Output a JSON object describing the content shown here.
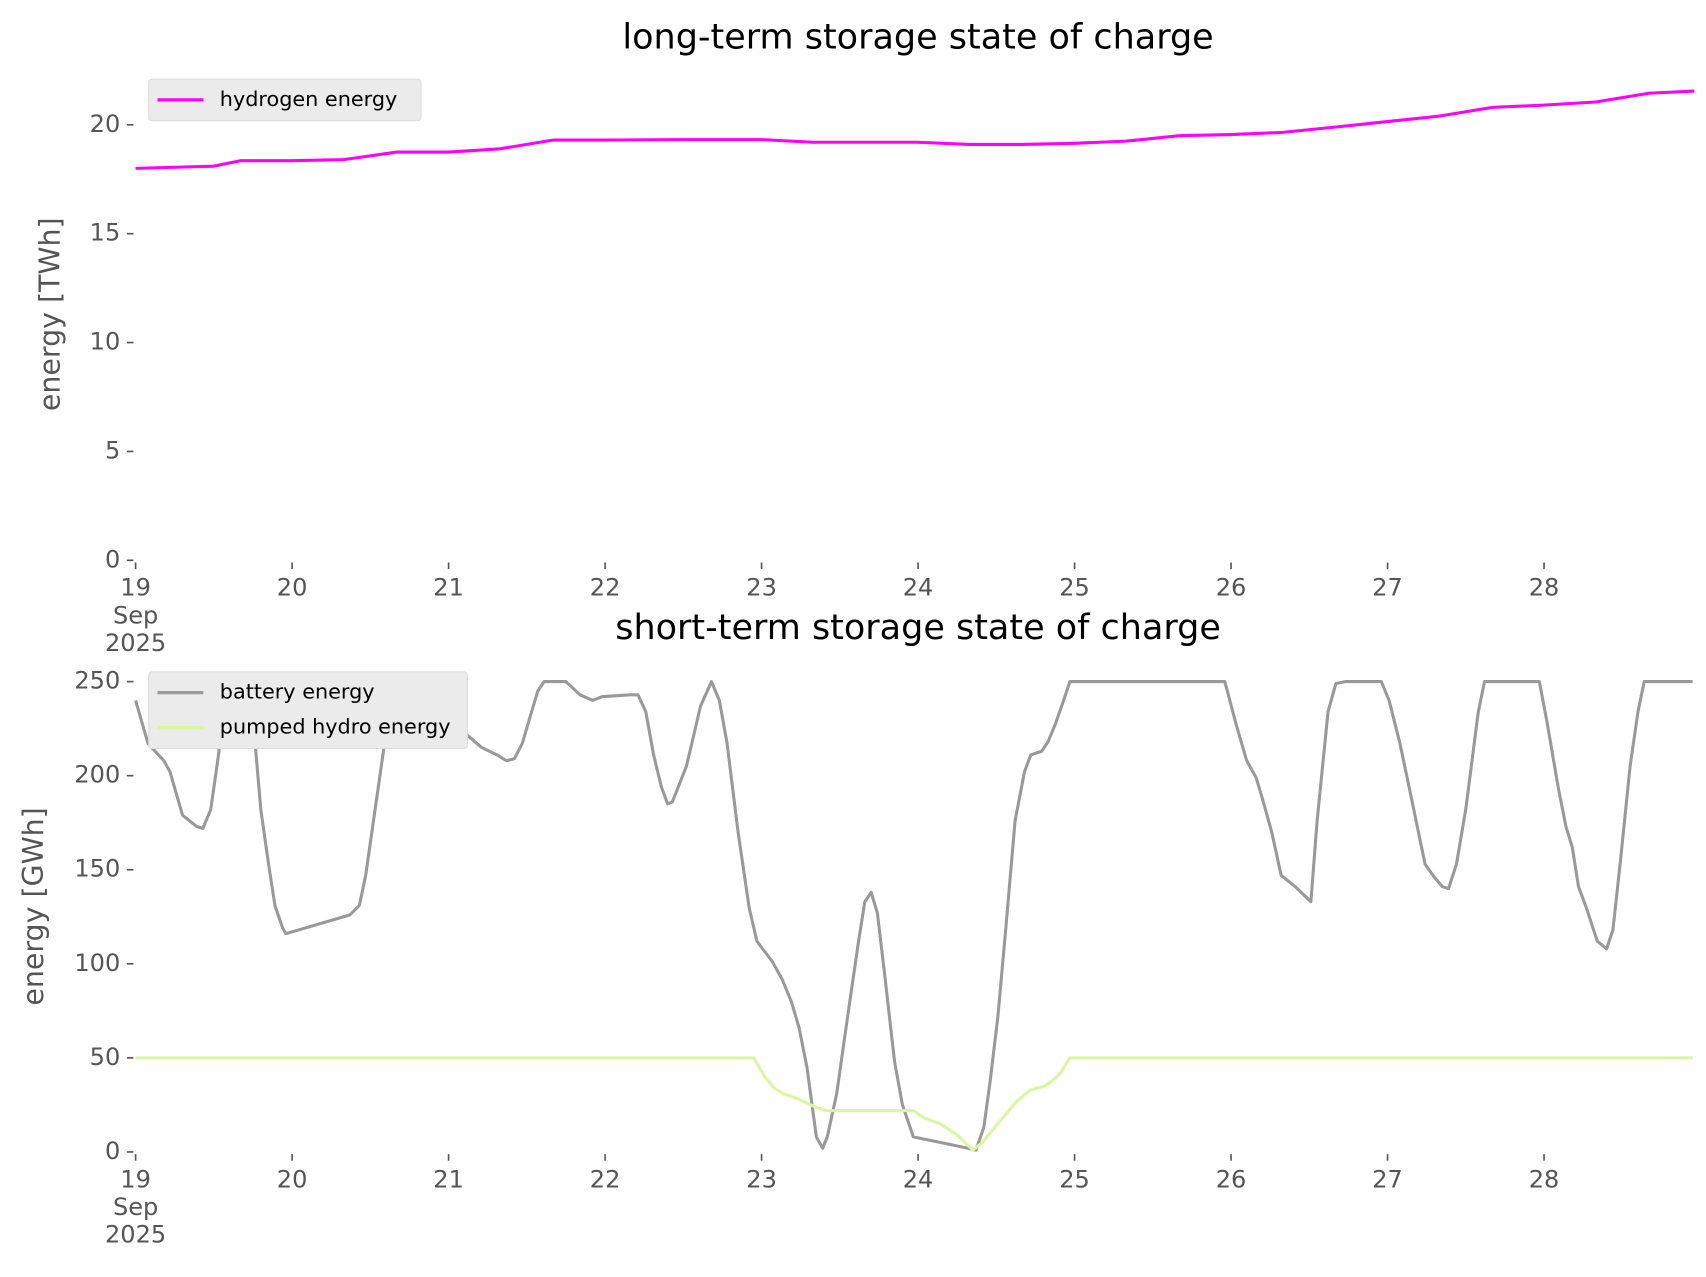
{
  "chart_data": [
    {
      "type": "line",
      "title": "long-term storage state of charge",
      "ylabel": "energy [TWh]",
      "xlim": [
        19,
        29
      ],
      "xticks": [
        {
          "value": 19,
          "label": "19\nSep\n2025"
        },
        20,
        21,
        22,
        23,
        24,
        25,
        26,
        27,
        28
      ],
      "ylim": [
        0,
        22.6
      ],
      "yticks": [
        0,
        5,
        10,
        15,
        20
      ],
      "legend": "upper left",
      "series": [
        {
          "name": "hydrogen energy",
          "color": "#ff00ff",
          "x": [
            19.0,
            19.25,
            19.5,
            19.67,
            20.0,
            20.33,
            20.67,
            21.0,
            21.33,
            21.67,
            22.0,
            22.5,
            23.0,
            23.33,
            23.67,
            24.0,
            24.33,
            24.67,
            25.0,
            25.33,
            25.67,
            26.0,
            26.33,
            26.67,
            27.0,
            27.33,
            27.67,
            28.0,
            28.33,
            28.67,
            28.96
          ],
          "values": [
            18.0,
            18.05,
            18.1,
            18.35,
            18.35,
            18.4,
            18.75,
            18.75,
            18.9,
            19.3,
            19.3,
            19.32,
            19.32,
            19.2,
            19.2,
            19.2,
            19.1,
            19.1,
            19.15,
            19.25,
            19.5,
            19.55,
            19.65,
            19.9,
            20.15,
            20.4,
            20.8,
            20.9,
            21.05,
            21.45,
            21.55
          ]
        }
      ]
    },
    {
      "type": "line",
      "title": "short-term storage state of charge",
      "ylabel": "energy [GWh]",
      "xlim": [
        19,
        29
      ],
      "xticks": [
        {
          "value": 19,
          "label": "19\nSep\n2025"
        },
        20,
        21,
        22,
        23,
        24,
        25,
        26,
        27,
        28
      ],
      "ylim": [
        0,
        261
      ],
      "yticks": [
        0,
        50,
        100,
        150,
        200,
        250
      ],
      "legend": "upper left",
      "series": [
        {
          "name": "battery energy",
          "color": "#999999",
          "x": [
            19.0,
            19.08,
            19.18,
            19.22,
            19.3,
            19.39,
            19.43,
            19.48,
            19.53,
            19.58,
            19.67,
            19.74,
            19.8,
            19.85,
            19.89,
            19.94,
            19.96,
            20.37,
            20.43,
            20.47,
            20.52,
            20.63,
            20.72,
            20.78,
            20.81,
            20.86,
            20.92,
            20.96,
            21.01,
            21.1,
            21.21,
            21.31,
            21.37,
            21.42,
            21.47,
            21.52,
            21.57,
            21.61,
            21.75,
            21.84,
            21.92,
            21.98,
            22.16,
            22.21,
            22.26,
            22.31,
            22.36,
            22.4,
            22.43,
            22.52,
            22.61,
            22.68,
            22.73,
            22.78,
            22.85,
            22.92,
            22.97,
            23.07,
            23.13,
            23.19,
            23.24,
            23.29,
            23.35,
            23.39,
            23.42,
            23.48,
            23.55,
            23.62,
            23.66,
            23.7,
            23.74,
            23.79,
            23.85,
            23.9,
            23.97,
            24.32,
            24.37,
            24.42,
            24.46,
            24.51,
            24.56,
            24.62,
            24.68,
            24.72,
            24.79,
            24.83,
            24.88,
            24.93,
            24.97,
            25.96,
            26.03,
            26.1,
            26.16,
            26.2,
            26.26,
            26.32,
            26.41,
            26.51,
            26.55,
            26.62,
            26.67,
            26.73,
            26.96,
            27.01,
            27.08,
            27.16,
            27.24,
            27.29,
            27.35,
            27.39,
            27.44,
            27.5,
            27.58,
            27.62,
            27.97,
            28.02,
            28.09,
            28.14,
            28.18,
            28.22,
            28.27,
            28.34,
            28.4,
            28.44,
            28.49,
            28.55,
            28.6,
            28.64,
            28.95
          ],
          "values": [
            240,
            217,
            208,
            202,
            179,
            173,
            172,
            182,
            211,
            246,
            250,
            240,
            182,
            153,
            131,
            119,
            116,
            126,
            131,
            147,
            176,
            240,
            245,
            237,
            231,
            231,
            240,
            250,
            237,
            223,
            215,
            211,
            208,
            209,
            217,
            231,
            245,
            250,
            250,
            243,
            240,
            242,
            243,
            243,
            234,
            211,
            194,
            185,
            186,
            205,
            237,
            250,
            240,
            217,
            170,
            130,
            112,
            101,
            92,
            80,
            66,
            45,
            8,
            2,
            8,
            31,
            72,
            112,
            133,
            138,
            127,
            92,
            48,
            25,
            8,
            2,
            1,
            13,
            37,
            72,
            118,
            176,
            202,
            211,
            213,
            218,
            228,
            240,
            250,
            250,
            228,
            208,
            199,
            188,
            170,
            147,
            141,
            133,
            176,
            234,
            249,
            250,
            250,
            240,
            217,
            185,
            153,
            147,
            141,
            140,
            153,
            182,
            234,
            250,
            250,
            228,
            194,
            173,
            162,
            141,
            130,
            112,
            108,
            118,
            156,
            205,
            234,
            250,
            250
          ]
        },
        {
          "name": "pumped hydro energy",
          "color": "#d9f7a0",
          "x": [
            19.0,
            22.95,
            23.02,
            23.08,
            23.14,
            23.24,
            23.34,
            23.41,
            23.97,
            24.04,
            24.14,
            24.25,
            24.3,
            24.35,
            24.41,
            24.49,
            24.56,
            24.63,
            24.72,
            24.81,
            24.86,
            24.91,
            24.97,
            28.95
          ],
          "values": [
            50,
            50,
            40,
            34,
            31,
            28,
            24,
            22,
            22,
            18,
            15,
            9,
            5,
            1,
            5,
            13,
            20,
            27,
            33,
            35,
            38,
            42,
            50,
            50
          ]
        }
      ]
    }
  ]
}
